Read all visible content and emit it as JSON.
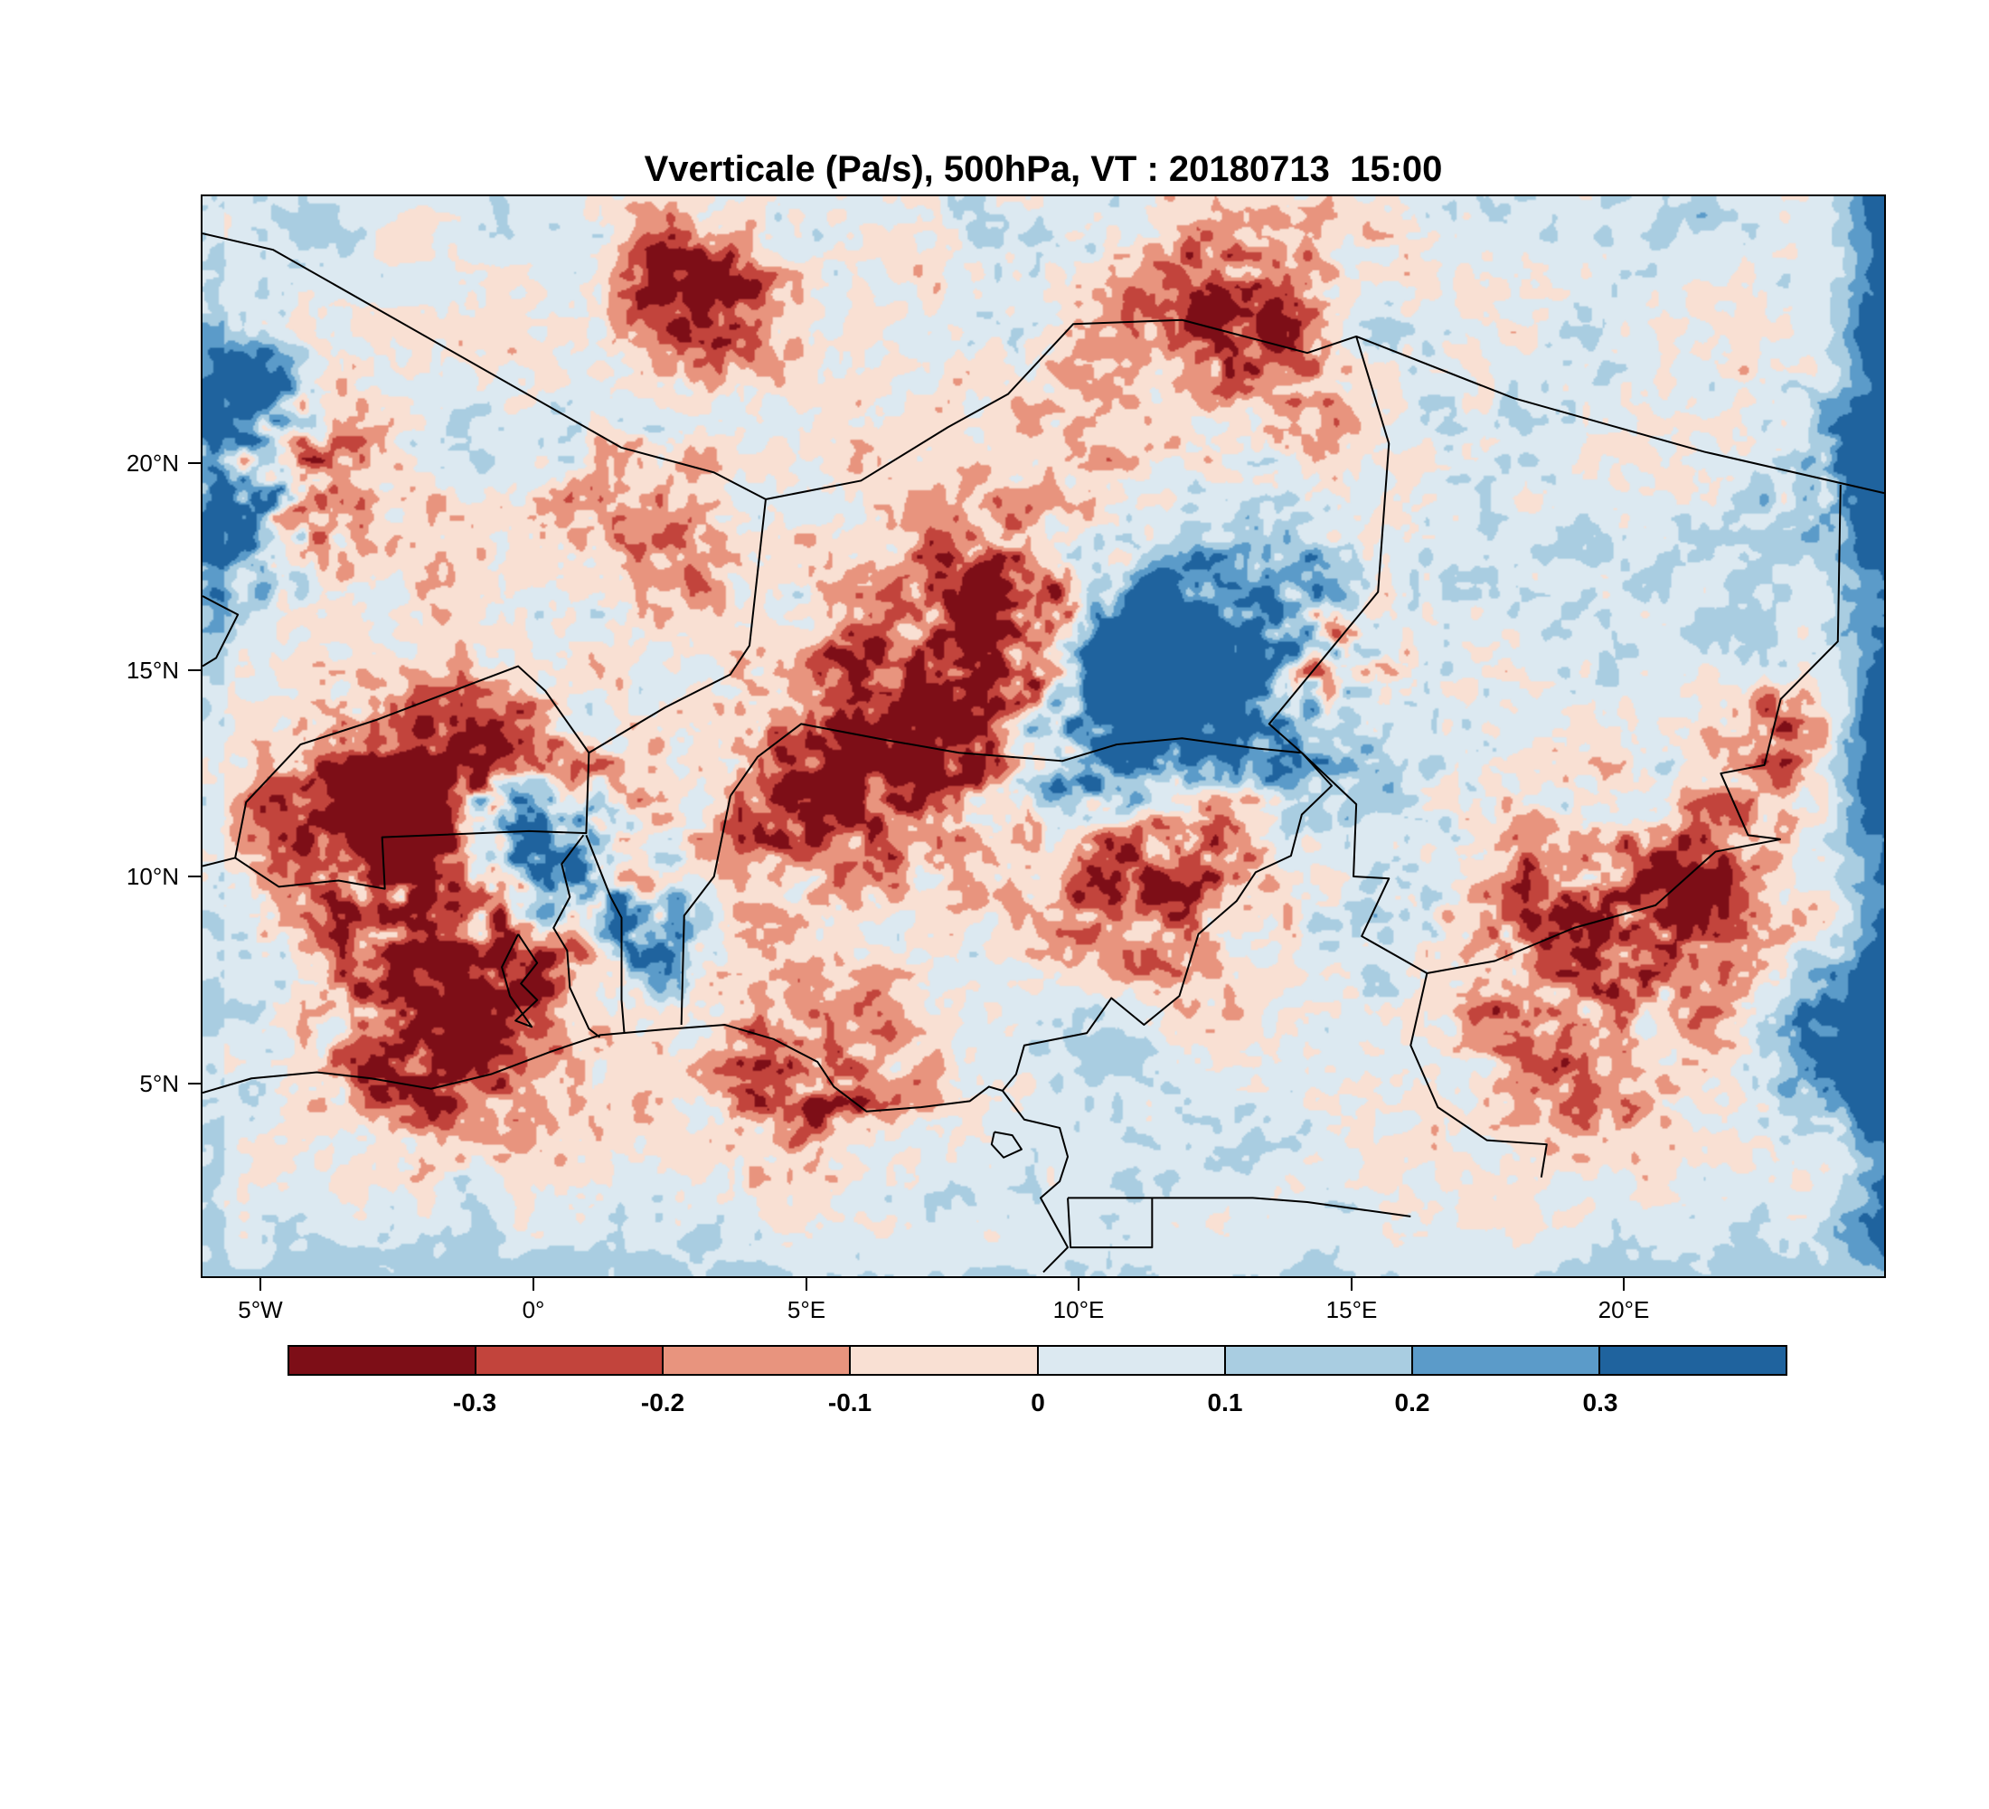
{
  "title": "Vverticale (Pa/s), 500hPa, VT : 20180713  15:00",
  "chart_data": {
    "type": "heatmap",
    "title": "Vverticale (Pa/s), 500hPa, VT : 20180713  15:00",
    "variable": "Vverticale",
    "units": "Pa/s",
    "level": "500hPa",
    "valid_time": "20180713 15:00",
    "x_ticks": [
      {
        "label": "5°W",
        "lon": -5
      },
      {
        "label": "0°",
        "lon": 0
      },
      {
        "label": "5°E",
        "lon": 5
      },
      {
        "label": "10°E",
        "lon": 10
      },
      {
        "label": "15°E",
        "lon": 15
      },
      {
        "label": "20°E",
        "lon": 20
      }
    ],
    "y_ticks": [
      {
        "label": "20°N",
        "lat": 20
      },
      {
        "label": "15°N",
        "lat": 15
      },
      {
        "label": "10°N",
        "lat": 10
      },
      {
        "label": "5°N",
        "lat": 5
      }
    ],
    "lon_range": [
      -6.1,
      24.8
    ],
    "lat_range": [
      0.3,
      26.5
    ],
    "grid": false,
    "legend_position": "bottom",
    "colorbar": {
      "levels": [
        -0.3,
        -0.2,
        -0.1,
        0,
        0.1,
        0.2,
        0.3
      ],
      "tick_labels": [
        "-0.3",
        "-0.2",
        "-0.1",
        "0",
        "0.1",
        "0.2",
        "0.3"
      ],
      "colors": [
        "#7d0e17",
        "#c2443c",
        "#e8947e",
        "#f9e0d3",
        "#dce9f1",
        "#a9cde1",
        "#5b9bc9",
        "#1f639e"
      ]
    }
  },
  "overlays": {
    "borders": [
      [
        [
          -6.1,
          25.6
        ],
        [
          -4.8,
          25.2
        ],
        [
          1.6,
          20.4
        ],
        [
          3.3,
          19.8
        ],
        [
          4.25,
          19.15
        ],
        [
          6.0,
          19.6
        ],
        [
          7.6,
          20.9
        ],
        [
          8.7,
          21.7
        ],
        [
          9.9,
          23.4
        ],
        [
          11.9,
          23.5
        ],
        [
          14.2,
          22.7
        ],
        [
          15.1,
          23.1
        ],
        [
          18.0,
          21.6
        ],
        [
          21.5,
          20.3
        ],
        [
          24.8,
          19.3
        ]
      ],
      [
        [
          15.1,
          23.1
        ],
        [
          15.7,
          20.5
        ],
        [
          15.5,
          16.9
        ],
        [
          13.5,
          13.7
        ],
        [
          14.1,
          13.0
        ]
      ],
      [
        [
          24.0,
          19.5
        ],
        [
          23.95,
          15.7
        ],
        [
          22.9,
          14.3
        ],
        [
          22.6,
          12.7
        ],
        [
          21.8,
          12.5
        ],
        [
          22.3,
          11.0
        ],
        [
          22.9,
          10.9
        ]
      ],
      [
        [
          4.25,
          19.15
        ],
        [
          3.95,
          15.6
        ],
        [
          3.6,
          14.9
        ],
        [
          2.4,
          14.1
        ],
        [
          1.0,
          13.0
        ],
        [
          0.2,
          14.5
        ],
        [
          -0.3,
          15.1
        ],
        [
          -2.9,
          13.8
        ],
        [
          -4.3,
          13.2
        ],
        [
          -5.3,
          11.8
        ],
        [
          -5.5,
          10.45
        ],
        [
          -6.1,
          10.25
        ]
      ],
      [
        [
          1.0,
          13.0
        ],
        [
          0.95,
          11.05
        ],
        [
          -0.1,
          11.1
        ],
        [
          -2.8,
          10.95
        ],
        [
          -2.75,
          9.7
        ],
        [
          -3.6,
          9.9
        ],
        [
          -4.7,
          9.75
        ],
        [
          -5.5,
          10.45
        ]
      ],
      [
        [
          0.9,
          11.0
        ],
        [
          0.5,
          10.3
        ],
        [
          0.65,
          9.5
        ],
        [
          0.35,
          8.75
        ],
        [
          0.6,
          8.2
        ],
        [
          0.65,
          7.3
        ],
        [
          1.0,
          6.3
        ],
        [
          1.2,
          6.1
        ]
      ],
      [
        [
          0.95,
          11.0
        ],
        [
          1.4,
          9.5
        ],
        [
          1.6,
          9.0
        ],
        [
          1.6,
          7.0
        ],
        [
          1.65,
          6.2
        ]
      ],
      [
        [
          3.6,
          11.95
        ],
        [
          3.3,
          10.0
        ],
        [
          2.75,
          9.05
        ],
        [
          2.7,
          6.4
        ]
      ],
      [
        [
          3.6,
          11.95
        ],
        [
          4.1,
          12.9
        ],
        [
          4.9,
          13.7
        ],
        [
          6.5,
          13.3
        ],
        [
          7.8,
          13.0
        ],
        [
          9.7,
          12.8
        ],
        [
          10.7,
          13.2
        ],
        [
          11.9,
          13.35
        ],
        [
          13.3,
          13.1
        ],
        [
          14.1,
          13.0
        ]
      ],
      [
        [
          14.1,
          13.0
        ],
        [
          14.65,
          12.2
        ],
        [
          14.1,
          11.5
        ],
        [
          13.9,
          10.5
        ],
        [
          13.25,
          10.1
        ],
        [
          12.9,
          9.4
        ],
        [
          12.2,
          8.6
        ],
        [
          11.85,
          7.1
        ],
        [
          11.2,
          6.4
        ],
        [
          10.6,
          7.05
        ],
        [
          10.15,
          6.2
        ],
        [
          9.0,
          5.9
        ],
        [
          8.85,
          5.2
        ],
        [
          8.6,
          4.8
        ]
      ],
      [
        [
          14.1,
          13.0
        ],
        [
          15.1,
          11.75
        ],
        [
          15.05,
          10.0
        ],
        [
          15.7,
          9.95
        ],
        [
          15.2,
          8.55
        ],
        [
          16.4,
          7.65
        ],
        [
          17.65,
          7.95
        ],
        [
          19.1,
          8.75
        ],
        [
          20.6,
          9.3
        ],
        [
          21.7,
          10.6
        ],
        [
          22.9,
          10.9
        ]
      ],
      [
        [
          16.4,
          7.65
        ],
        [
          16.1,
          5.9
        ],
        [
          16.6,
          4.4
        ],
        [
          17.5,
          3.6
        ],
        [
          18.6,
          3.5
        ],
        [
          18.5,
          2.7
        ]
      ],
      [
        [
          -6.1,
          4.75
        ],
        [
          -5.2,
          5.1
        ],
        [
          -4.0,
          5.25
        ],
        [
          -3.0,
          5.1
        ],
        [
          -1.9,
          4.85
        ],
        [
          -0.8,
          5.2
        ],
        [
          0.3,
          5.75
        ],
        [
          1.2,
          6.15
        ],
        [
          2.5,
          6.3
        ],
        [
          3.5,
          6.4
        ],
        [
          4.4,
          6.05
        ],
        [
          5.2,
          5.5
        ],
        [
          5.5,
          4.9
        ],
        [
          6.1,
          4.3
        ],
        [
          7.1,
          4.4
        ],
        [
          8.0,
          4.55
        ],
        [
          8.35,
          4.9
        ],
        [
          8.6,
          4.8
        ],
        [
          9.0,
          4.1
        ],
        [
          9.65,
          3.9
        ],
        [
          9.8,
          3.2
        ],
        [
          9.65,
          2.6
        ],
        [
          9.3,
          2.2
        ],
        [
          9.8,
          1.0
        ],
        [
          9.35,
          0.4
        ]
      ],
      [
        [
          9.8,
          2.2
        ],
        [
          11.35,
          2.2
        ],
        [
          11.35,
          1.0
        ],
        [
          9.85,
          1.0
        ],
        [
          9.8,
          2.2
        ]
      ],
      [
        [
          11.35,
          2.2
        ],
        [
          13.2,
          2.2
        ],
        [
          14.2,
          2.1
        ],
        [
          16.1,
          1.75
        ]
      ],
      [
        [
          8.45,
          3.8
        ],
        [
          8.78,
          3.72
        ],
        [
          8.95,
          3.38
        ],
        [
          8.62,
          3.18
        ],
        [
          8.4,
          3.5
        ],
        [
          8.45,
          3.8
        ]
      ],
      [
        [
          -0.3,
          8.6
        ],
        [
          0.05,
          7.9
        ],
        [
          -0.25,
          7.4
        ],
        [
          0.05,
          7.0
        ],
        [
          -0.35,
          6.5
        ],
        [
          -0.05,
          6.35
        ],
        [
          -0.45,
          7.1
        ],
        [
          -0.6,
          7.8
        ],
        [
          -0.3,
          8.6
        ]
      ],
      [
        [
          -6.1,
          16.8
        ],
        [
          -5.45,
          16.35
        ],
        [
          -5.85,
          15.3
        ],
        [
          -6.1,
          15.1
        ]
      ]
    ]
  }
}
